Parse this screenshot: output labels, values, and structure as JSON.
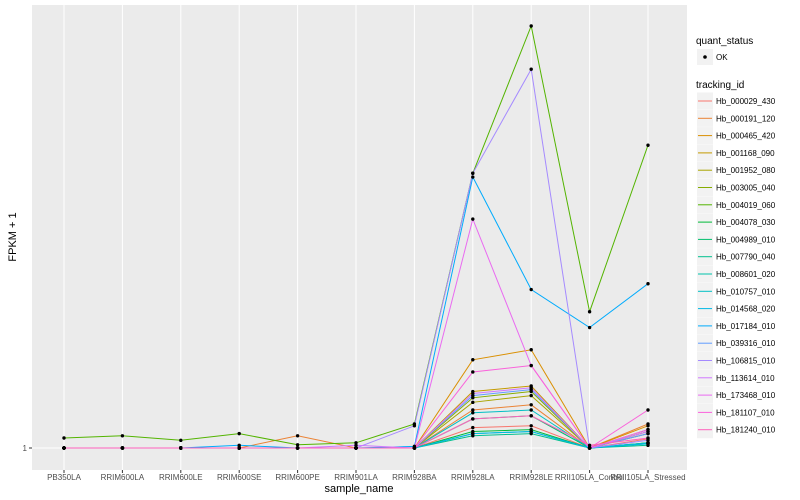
{
  "chart_data": {
    "type": "line",
    "xlabel": "sample_name",
    "ylabel": "FPKM + 1",
    "y_tick_labels": [
      "1"
    ],
    "y_scale": "log",
    "ylim": [
      1,
      2200
    ],
    "grid": true,
    "legend_placement": "right",
    "categories": [
      "PB350LA",
      "RRIM600LA",
      "RRIM600LE",
      "RRIM600SE",
      "RRIM600PE",
      "RRIM901LA",
      "RRIM928BA",
      "RRIM928LA",
      "RRIM928LE",
      "RRII105LA_Control",
      "RRII105LA_Stressed"
    ],
    "legend_quant": {
      "title": "quant_status",
      "items": [
        {
          "label": "OK",
          "color": "#000000"
        }
      ]
    },
    "legend_tracking": {
      "title": "tracking_id"
    },
    "series": [
      {
        "name": "Hb_000029_430",
        "color": "#F8766D",
        "values": [
          1,
          1,
          1,
          1,
          1,
          1,
          1,
          1.45,
          1.5,
          1,
          1.18
        ]
      },
      {
        "name": "Hb_000191_120",
        "color": "#EB8335",
        "values": [
          1,
          1,
          1,
          1,
          1.25,
          1,
          1,
          2.0,
          2.2,
          1,
          1.55
        ]
      },
      {
        "name": "Hb_000465_420",
        "color": "#DA8F00",
        "values": [
          1,
          1,
          1,
          1,
          1,
          1,
          1,
          5.0,
          6.0,
          1,
          1.5
        ]
      },
      {
        "name": "Hb_001168_090",
        "color": "#C49A00",
        "values": [
          1,
          1,
          1,
          1,
          1,
          1,
          1,
          2.8,
          3.1,
          1,
          1.4
        ]
      },
      {
        "name": "Hb_001952_080",
        "color": "#A9A400",
        "values": [
          1,
          1,
          1,
          1,
          1,
          1,
          1,
          2.3,
          2.6,
          1,
          1.3
        ]
      },
      {
        "name": "Hb_003005_040",
        "color": "#86AC00",
        "values": [
          1,
          1,
          1,
          1,
          1,
          1,
          1,
          2.5,
          2.8,
          1,
          1.35
        ]
      },
      {
        "name": "Hb_004019_060",
        "color": "#53B400",
        "values": [
          1.2,
          1.25,
          1.15,
          1.3,
          1.06,
          1.1,
          1.55,
          150,
          2200,
          12,
          250
        ]
      },
      {
        "name": "Hb_004078_030",
        "color": "#00BA38",
        "values": [
          1,
          1,
          1,
          1,
          1,
          1,
          1,
          1.35,
          1.4,
          1,
          1.1
        ]
      },
      {
        "name": "Hb_004989_010",
        "color": "#00BE6C",
        "values": [
          1,
          1,
          1,
          1,
          1,
          1,
          1,
          1.7,
          1.8,
          1,
          1.1
        ]
      },
      {
        "name": "Hb_007790_040",
        "color": "#00C08E",
        "values": [
          1,
          1,
          1,
          1,
          1,
          1,
          1,
          1.25,
          1.3,
          1,
          1.05
        ]
      },
      {
        "name": "Hb_008601_020",
        "color": "#00C1AB",
        "values": [
          1,
          1,
          1,
          1,
          1,
          1,
          1,
          1.3,
          1.35,
          1,
          1.08
        ]
      },
      {
        "name": "Hb_010757_010",
        "color": "#00BFC4",
        "values": [
          1,
          1,
          1,
          1,
          1,
          1,
          1,
          1.9,
          2.0,
          1,
          1.1
        ]
      },
      {
        "name": "Hb_014568_020",
        "color": "#00B8E5",
        "values": [
          1,
          1,
          1,
          1,
          1,
          1,
          1,
          1.3,
          1.35,
          1,
          1.08
        ]
      },
      {
        "name": "Hb_017184_010",
        "color": "#00ABFD",
        "values": [
          1,
          1,
          1,
          1.05,
          1,
          1,
          1.03,
          140,
          18,
          9,
          20
        ]
      },
      {
        "name": "Hb_039316_010",
        "color": "#619CFF",
        "values": [
          1,
          1,
          1,
          1,
          1,
          1,
          1,
          2.6,
          2.9,
          1,
          1.3
        ]
      },
      {
        "name": "Hb_106815_010",
        "color": "#A58AFF",
        "values": [
          1,
          1,
          1,
          1,
          1,
          1,
          1.5,
          150,
          1000,
          1,
          1.15
        ]
      },
      {
        "name": "Hb_113614_010",
        "color": "#CF78FF",
        "values": [
          1,
          1,
          1,
          1,
          1,
          1.05,
          1,
          2.7,
          3.0,
          1,
          1.35
        ]
      },
      {
        "name": "Hb_173468_010",
        "color": "#EA6AF1",
        "values": [
          1,
          1,
          1,
          1,
          1,
          1,
          1,
          65,
          4.5,
          1,
          1.4
        ]
      },
      {
        "name": "Hb_181107_010",
        "color": "#FA62DB",
        "values": [
          1,
          1,
          1,
          1,
          1,
          1,
          1,
          4.0,
          4.5,
          1,
          2.0
        ]
      },
      {
        "name": "Hb_181240_010",
        "color": "#FF62BC",
        "values": [
          1,
          1,
          1,
          1,
          1,
          1,
          1,
          1.7,
          1.8,
          1.05,
          1.2
        ]
      }
    ]
  }
}
